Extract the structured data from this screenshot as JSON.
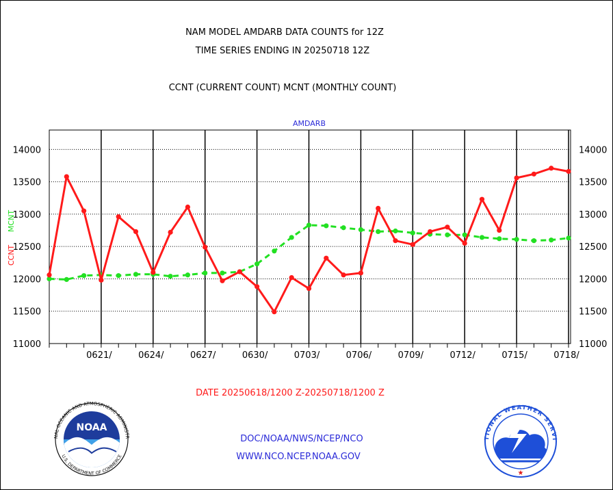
{
  "header": {
    "title_line1": "NAM MODEL AMDARB DATA COUNTS for 12Z",
    "title_line2": "TIME SERIES ENDING IN 20250718 12Z",
    "subtitle": "CCNT (CURRENT COUNT) MCNT (MONTHLY COUNT)"
  },
  "footer": {
    "date_range": "DATE 20250618/1200 Z-20250718/1200 Z",
    "org_path": "DOC/NOAA/NWS/NCEP/NCO",
    "website": "WWW.NCO.NCEP.NOAA.GOV"
  },
  "logos": {
    "left": {
      "center_text": "NOAA",
      "ring_text": "NATIONAL OCEANIC AND ATMOSPHERIC ADMINISTRATION",
      "bottom_ring_text": "U.S. DEPARTMENT OF COMMERCE",
      "icon": "noaa-seagull-icon"
    },
    "right": {
      "ring_text": "NATIONAL WEATHER SERVICE",
      "icon": "nws-lightning-cloud-icon"
    }
  },
  "colors": {
    "ccnt": "#ff1a1a",
    "mcnt": "#22e022",
    "inner_title": "#2a2ad8",
    "footer_blue": "#2a2ad8",
    "footer_red": "#ff1a1a"
  },
  "chart_data": {
    "type": "line",
    "inner_title": "AMDARB",
    "ylabel_ccnt": "CCNT",
    "ylabel_mcnt": "MCNT",
    "ylim": [
      11000,
      14300
    ],
    "yticks": [
      11000,
      11500,
      12000,
      12500,
      13000,
      13500,
      14000
    ],
    "ytick_labels": [
      "11000",
      "11500",
      "12000",
      "12500",
      "13000",
      "13500",
      "14000"
    ],
    "x_start": "0618",
    "x_end": "0718",
    "xticks": [
      "0621",
      "0624",
      "0627",
      "0630",
      "0703",
      "0706",
      "0709",
      "0712",
      "0715",
      "0718"
    ],
    "xtick_labels": [
      "0621/",
      "0624/",
      "0627/",
      "0630/",
      "0703/",
      "0706/",
      "0709/",
      "0712/",
      "0715/",
      "0718/"
    ],
    "grid": true,
    "series": [
      {
        "name": "CCNT",
        "style": "solid",
        "values": [
          12060,
          13580,
          13050,
          11980,
          12960,
          12730,
          12100,
          12720,
          13110,
          12490,
          11970,
          12110,
          11880,
          11490,
          12020,
          11850,
          12320,
          12060,
          12090,
          13090,
          12590,
          12530,
          12730,
          12800,
          12550,
          13230,
          12750,
          13560,
          13620,
          13710,
          13660
        ]
      },
      {
        "name": "MCNT",
        "style": "dashed",
        "values": [
          12000,
          11990,
          12050,
          12060,
          12050,
          12070,
          12070,
          12040,
          12060,
          12090,
          12090,
          12110,
          12230,
          12430,
          12640,
          12830,
          12820,
          12790,
          12760,
          12730,
          12740,
          12710,
          12690,
          12680,
          12680,
          12640,
          12620,
          12610,
          12590,
          12600,
          12630
        ]
      }
    ]
  }
}
